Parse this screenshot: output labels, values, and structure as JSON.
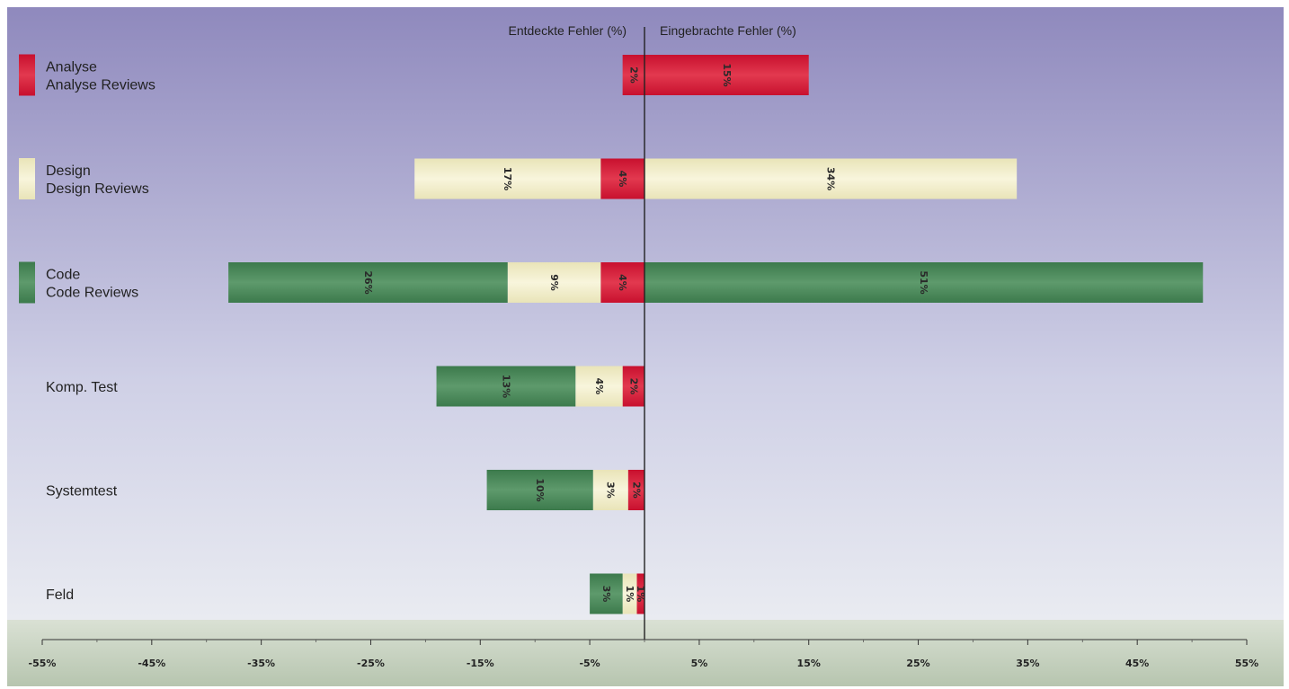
{
  "chart_data": {
    "type": "bar",
    "orientation": "horizontal",
    "stacked": true,
    "left_header": "Entdeckte Fehler (%)",
    "right_header": "Eingebrachte Fehler (%)",
    "xlim": [
      -55,
      55
    ],
    "x_ticks": [
      {
        "value": -55,
        "label": "-55%"
      },
      {
        "value": -45,
        "label": "-45%"
      },
      {
        "value": -35,
        "label": "-35%"
      },
      {
        "value": -25,
        "label": "-25%"
      },
      {
        "value": -15,
        "label": "-15%"
      },
      {
        "value": -5,
        "label": "-5%"
      },
      {
        "value": 5,
        "label": "5%"
      },
      {
        "value": 15,
        "label": "15%"
      },
      {
        "value": 25,
        "label": "25%"
      },
      {
        "value": 35,
        "label": "35%"
      },
      {
        "value": 45,
        "label": "45%"
      },
      {
        "value": 55,
        "label": "55%"
      }
    ],
    "categories": [
      "Analyse Reviews",
      "Design Reviews",
      "Code Reviews",
      "Komp. Test",
      "Systemtest",
      "Feld"
    ],
    "category_labels": [
      {
        "line1": "Analyse",
        "line2": "Analyse Reviews",
        "swatch": "analyse"
      },
      {
        "line1": "Design",
        "line2": "Design Reviews",
        "swatch": "design"
      },
      {
        "line1": "Code",
        "line2": "Code Reviews",
        "swatch": "code"
      },
      {
        "line1": "Komp. Test",
        "line2": "",
        "swatch": ""
      },
      {
        "line1": "Systemtest",
        "line2": "",
        "swatch": ""
      },
      {
        "line1": "Feld",
        "line2": "",
        "swatch": ""
      }
    ],
    "series": [
      {
        "key": "analyse",
        "color": "#c8102e",
        "light": "#e2394f",
        "detected": [
          2,
          4,
          4,
          2,
          1.5,
          0.7
        ],
        "detected_labels": [
          "2%",
          "4%",
          "4%",
          "2%",
          "2%",
          "1%"
        ],
        "introduced": [
          15,
          0,
          0,
          0,
          0,
          0
        ],
        "introduced_labels": [
          "15%",
          "",
          "",
          "",
          "",
          ""
        ]
      },
      {
        "key": "design",
        "color": "#e9e4b8",
        "light": "#f8f5dc",
        "detected": [
          0,
          17,
          8.5,
          4.3,
          3.2,
          1.3
        ],
        "detected_labels": [
          "",
          "17%",
          "9%",
          "4%",
          "3%",
          "1%"
        ],
        "introduced": [
          0,
          34,
          0,
          0,
          0,
          0
        ],
        "introduced_labels": [
          "",
          "34%",
          "",
          "",
          "",
          ""
        ]
      },
      {
        "key": "code",
        "color": "#3c7a4c",
        "light": "#5e9a6c",
        "detected": [
          0,
          0,
          25.5,
          12.7,
          9.7,
          3
        ],
        "detected_labels": [
          "",
          "",
          "26%",
          "13%",
          "10%",
          "3%"
        ],
        "introduced": [
          0,
          0,
          51,
          0,
          0,
          0
        ],
        "introduced_labels": [
          "",
          "",
          "51%",
          "",
          "",
          ""
        ]
      }
    ]
  }
}
